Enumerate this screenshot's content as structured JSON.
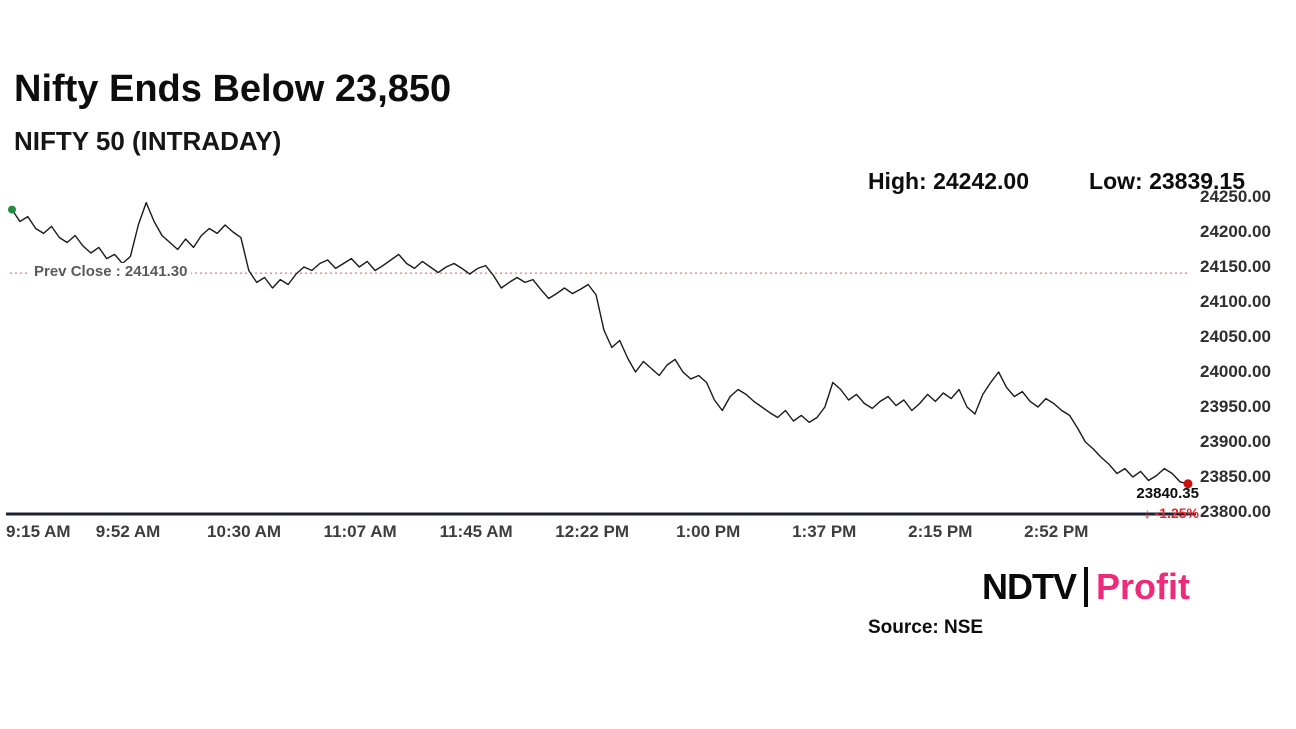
{
  "title": "Nifty Ends Below 23,850",
  "subtitle": "NIFTY 50 (INTRADAY)",
  "high_label": "High: 24242.00",
  "low_label": "Low: 23839.15",
  "prev_close_label": "Prev Close : 24141.30",
  "last_price": "23840.35",
  "change_arrow": "↓",
  "change_pct": "-1.25%",
  "source": "Source: NSE",
  "logo": {
    "ndtv": "NDTV",
    "profit": "Profit"
  },
  "colors": {
    "line": "#1a1a1a",
    "prev_close": "#e05a5a",
    "negative": "#e8262d",
    "profit_pink": "#ee2a7b",
    "start_dot": "#1e8e3e",
    "end_dot": "#cc1111",
    "axis": "#1c2333"
  },
  "chart_data": {
    "type": "line",
    "title": "NIFTY 50 (INTRADAY)",
    "xlabel": "",
    "ylabel": "",
    "ylim": [
      23800,
      24250
    ],
    "grid": false,
    "legend": "none",
    "high": 24242.0,
    "low": 23839.15,
    "prev_close": 24141.3,
    "last": 23840.35,
    "x_total_minutes": 375,
    "x_tick_interval_minutes": 37,
    "x_tick_labels": [
      "9:15 AM",
      "9:52 AM",
      "10:30 AM",
      "11:07 AM",
      "11:45 AM",
      "12:22 PM",
      "1:00 PM",
      "1:37 PM",
      "2:15 PM",
      "2:52 PM"
    ],
    "y_tick_labels": [
      "24250.00",
      "24200.00",
      "24150.00",
      "24100.00",
      "24050.00",
      "24000.00",
      "23950.00",
      "23900.00",
      "23850.00",
      "23800.00"
    ],
    "values": [
      24232,
      24215,
      24222,
      24205,
      24198,
      24208,
      24192,
      24185,
      24195,
      24180,
      24170,
      24178,
      24162,
      24168,
      24155,
      24165,
      24210,
      24242,
      24215,
      24195,
      24185,
      24175,
      24190,
      24178,
      24195,
      24205,
      24198,
      24210,
      24200,
      24192,
      24145,
      24128,
      24135,
      24120,
      24132,
      24125,
      24140,
      24150,
      24145,
      24155,
      24160,
      24148,
      24155,
      24162,
      24150,
      24158,
      24145,
      24152,
      24160,
      24168,
      24155,
      24148,
      24158,
      24150,
      24142,
      24150,
      24155,
      24148,
      24140,
      24148,
      24152,
      24138,
      24120,
      24128,
      24135,
      24128,
      24132,
      24118,
      24105,
      24112,
      24120,
      24112,
      24118,
      24125,
      24110,
      24060,
      24035,
      24045,
      24020,
      24000,
      24015,
      24005,
      23995,
      24010,
      24018,
      24000,
      23990,
      23995,
      23985,
      23960,
      23945,
      23965,
      23975,
      23968,
      23958,
      23950,
      23942,
      23935,
      23945,
      23930,
      23938,
      23928,
      23935,
      23950,
      23985,
      23975,
      23960,
      23968,
      23955,
      23948,
      23958,
      23965,
      23952,
      23960,
      23945,
      23955,
      23968,
      23958,
      23970,
      23962,
      23975,
      23950,
      23940,
      23968,
      23985,
      24000,
      23978,
      23965,
      23972,
      23958,
      23950,
      23962,
      23955,
      23945,
      23938,
      23920,
      23900,
      23890,
      23878,
      23868,
      23855,
      23862,
      23850,
      23858,
      23845,
      23852,
      23862,
      23855,
      23843,
      23840.35
    ]
  }
}
